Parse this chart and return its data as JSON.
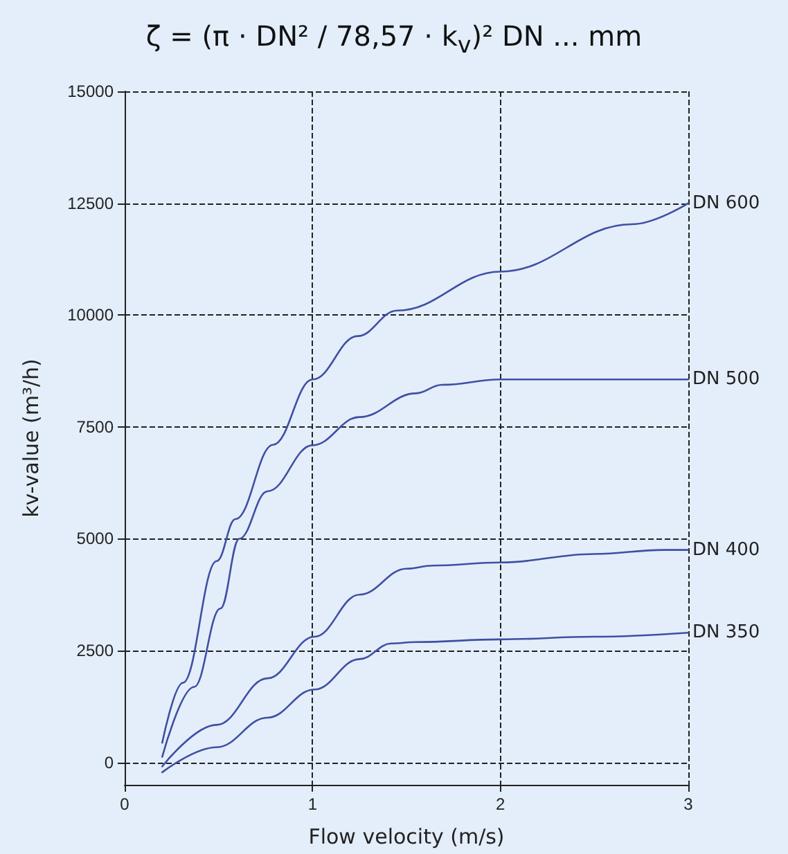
{
  "chart_data": {
    "type": "line",
    "title": "ζ = (π · DN² / 78,57 · k$_{v}$)²   DN ... mm",
    "xlabel": "Flow velocity (m/s)",
    "ylabel": "kv-value (m³/h)",
    "xlim": [
      0,
      3
    ],
    "xticks": [
      0,
      1,
      2,
      3
    ],
    "ylim": [
      -500,
      15000
    ],
    "yticks": [
      0,
      2500,
      5000,
      7500,
      10000,
      12500,
      15000
    ],
    "grid": true,
    "legend": false,
    "marker": "none",
    "line_style": "solid",
    "series": [
      {
        "name": "DN 600",
        "color": "#3f4fa3",
        "x": [
          0.2,
          0.31,
          0.49,
          0.59,
          0.79,
          1.0,
          1.24,
          1.45,
          2.0,
          2.7,
          3.0
        ],
        "values": [
          440,
          1780,
          4500,
          5440,
          7100,
          8560,
          9530,
          10100,
          10970,
          12030,
          12500
        ]
      },
      {
        "name": "DN 500",
        "color": "#3f4fa3",
        "x": [
          0.2,
          0.37,
          0.51,
          0.61,
          0.76,
          1.0,
          1.25,
          1.55,
          1.69,
          2.0,
          2.63,
          3.0
        ],
        "values": [
          125,
          1690,
          3440,
          5000,
          6060,
          7090,
          7720,
          8250,
          8440,
          8560,
          8560,
          8560
        ]
      },
      {
        "name": "DN 400",
        "color": "#3f4fa3",
        "x": [
          0.2,
          0.49,
          0.76,
          1.01,
          1.25,
          1.5,
          1.64,
          2.0,
          2.5,
          2.87,
          3.0
        ],
        "values": [
          -90,
          840,
          1880,
          2810,
          3750,
          4330,
          4400,
          4470,
          4660,
          4750,
          4750
        ]
      },
      {
        "name": "DN 350",
        "color": "#3f4fa3",
        "x": [
          0.2,
          0.49,
          0.76,
          1.01,
          1.25,
          1.42,
          1.55,
          2.0,
          2.5,
          3.0
        ],
        "values": [
          -220,
          340,
          1000,
          1630,
          2310,
          2660,
          2690,
          2750,
          2810,
          2900
        ]
      }
    ]
  }
}
